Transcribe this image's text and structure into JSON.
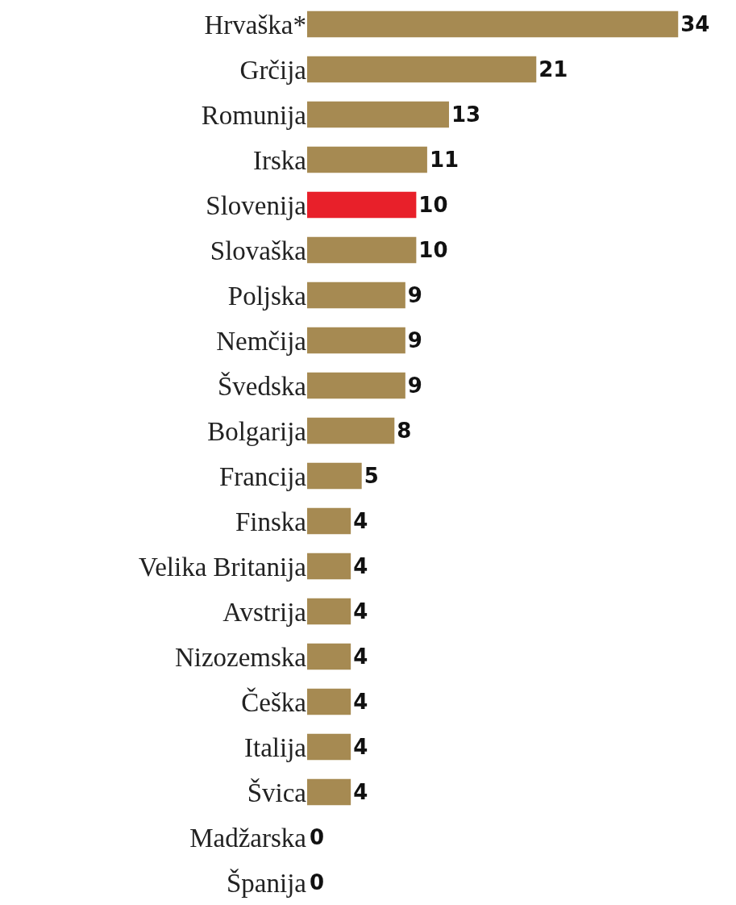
{
  "chart_data": {
    "type": "bar",
    "orientation": "horizontal",
    "categories": [
      "Hrvaška*",
      "Grčija",
      "Romunija",
      "Irska",
      "Slovenija",
      "Slovaška",
      "Poljska",
      "Nemčija",
      "Švedska",
      "Bolgarija",
      "Francija",
      "Finska",
      "Velika Britanija",
      "Avstrija",
      "Nizozemska",
      "Češka",
      "Italija",
      "Švica",
      "Madžarska",
      "Španija"
    ],
    "values": [
      34,
      21,
      13,
      11,
      10,
      10,
      9,
      9,
      9,
      8,
      5,
      4,
      4,
      4,
      4,
      4,
      4,
      4,
      0,
      0
    ],
    "colors": [
      "#a68a52",
      "#a68a52",
      "#a68a52",
      "#a68a52",
      "#e8202a",
      "#a68a52",
      "#a68a52",
      "#a68a52",
      "#a68a52",
      "#a68a52",
      "#a68a52",
      "#a68a52",
      "#a68a52",
      "#a68a52",
      "#a68a52",
      "#a68a52",
      "#a68a52",
      "#a68a52",
      "#a68a52",
      "#a68a52"
    ],
    "xlim": [
      0,
      39.3
    ],
    "data_labels": true,
    "tick_labels": "y"
  }
}
